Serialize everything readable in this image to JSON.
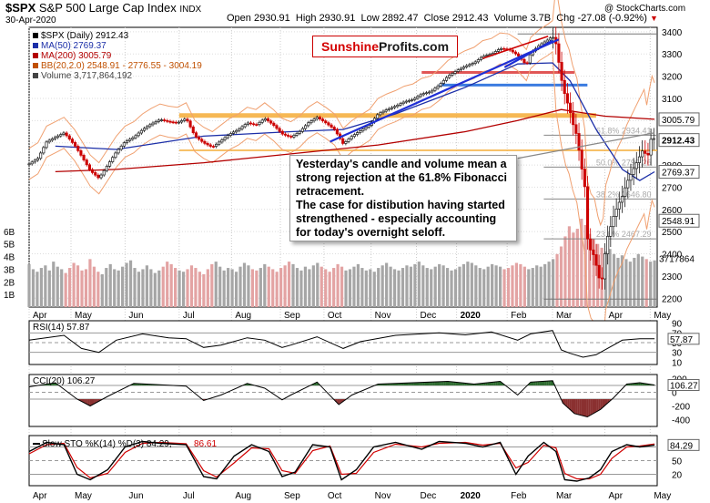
{
  "header": {
    "symbol": "$SPX",
    "name": "S&P 500 Large Cap Index",
    "exchange": "INDX",
    "date": "30-Apr-2020",
    "open_label": "Open",
    "open": "2930.91",
    "high_label": "High",
    "high": "2930.91",
    "low_label": "Low",
    "low": "2892.47",
    "close_label": "Close",
    "close": "2912.43",
    "volume_label": "Volume",
    "volume": "3.7B",
    "chg_label": "Chg",
    "chg": "-27.08 (-0.92%)",
    "chg_arrow": "▼",
    "copyright": "@ StockCharts.com"
  },
  "legend": {
    "price": "$SPX (Daily) 2912.43",
    "ma50": "MA(50) 2769.37",
    "ma200": "MA(200) 3005.79",
    "bb": "BB(20,2.0) 2548.91 - 2776.55 - 3004.19",
    "volume": "Volume 3,717,864,192"
  },
  "logo": {
    "part1": "Sunshine",
    "part2": "Profits.com"
  },
  "callout": "Yesterday's candle and volume mean a strong rejection at the 61.8% Fibonacci retracement.\nThe case for distibution having started strengthened - especially accounting for today's overnight seloff.",
  "colors": {
    "up": "#1a1a1a",
    "down": "#cc0000",
    "ma50": "#1c2fa8",
    "ma200": "#b30000",
    "bb": "#f0a070",
    "support": "#f5b041",
    "trend": "#1f2fd6",
    "sup_blue": "#3a7be0",
    "res_red": "#e05555",
    "vol_up": "#a6a6a6",
    "vol_down": "#e3a3a3"
  },
  "chart_data": {
    "main": {
      "type": "line",
      "title": "$SPX S&P 500 Large Cap Index (Daily)",
      "x_ticks": [
        "Apr",
        "May",
        "Jun",
        "Jul",
        "Aug",
        "Sep",
        "Oct",
        "Nov",
        "Dec",
        "2020",
        "Feb",
        "Mar",
        "Apr",
        "May"
      ],
      "y_ticks": [
        2200,
        2300,
        2400,
        2500,
        2600,
        2700,
        2800,
        2900,
        3000,
        3100,
        3200,
        3300,
        3400
      ],
      "ylim": [
        2160,
        3420
      ],
      "close_series": [
        [
          0,
          2805
        ],
        [
          10,
          2830
        ],
        [
          20,
          2905
        ],
        [
          30,
          2925
        ],
        [
          40,
          2945
        ],
        [
          52,
          2890
        ],
        [
          60,
          2840
        ],
        [
          70,
          2775
        ],
        [
          80,
          2740
        ],
        [
          90,
          2800
        ],
        [
          100,
          2860
        ],
        [
          110,
          2905
        ],
        [
          120,
          2925
        ],
        [
          130,
          2960
        ],
        [
          140,
          2985
        ],
        [
          150,
          3005
        ],
        [
          160,
          2995
        ],
        [
          170,
          2990
        ],
        [
          180,
          3010
        ],
        [
          190,
          2930
        ],
        [
          200,
          2900
        ],
        [
          210,
          2880
        ],
        [
          220,
          2910
        ],
        [
          230,
          2940
        ],
        [
          240,
          2960
        ],
        [
          250,
          2990
        ],
        [
          260,
          2980
        ],
        [
          270,
          3010
        ],
        [
          280,
          2980
        ],
        [
          290,
          2940
        ],
        [
          300,
          2925
        ],
        [
          310,
          2950
        ],
        [
          320,
          2990
        ],
        [
          330,
          3015
        ],
        [
          340,
          2990
        ],
        [
          350,
          2960
        ],
        [
          360,
          2895
        ],
        [
          370,
          2930
        ],
        [
          380,
          2955
        ],
        [
          390,
          2980
        ],
        [
          400,
          3030
        ],
        [
          410,
          3050
        ],
        [
          420,
          3065
        ],
        [
          430,
          3085
        ],
        [
          440,
          3095
        ],
        [
          450,
          3120
        ],
        [
          460,
          3130
        ],
        [
          470,
          3160
        ],
        [
          480,
          3200
        ],
        [
          490,
          3225
        ],
        [
          500,
          3245
        ],
        [
          510,
          3260
        ],
        [
          520,
          3290
        ],
        [
          530,
          3300
        ],
        [
          540,
          3325
        ],
        [
          550,
          3320
        ],
        [
          560,
          3295
        ],
        [
          570,
          3250
        ],
        [
          575,
          3305
        ],
        [
          585,
          3340
        ],
        [
          595,
          3365
        ],
        [
          600,
          3380
        ],
        [
          604,
          3345
        ],
        [
          610,
          3190
        ],
        [
          615,
          3100
        ],
        [
          619,
          3060
        ],
        [
          623,
          2990
        ],
        [
          628,
          2930
        ],
        [
          632,
          2820
        ],
        [
          637,
          2700
        ],
        [
          640,
          2470
        ],
        [
          644,
          2410
        ],
        [
          648,
          2390
        ],
        [
          652,
          2310
        ],
        [
          655,
          2270
        ],
        [
          658,
          2300
        ],
        [
          661,
          2450
        ],
        [
          665,
          2500
        ],
        [
          670,
          2570
        ],
        [
          675,
          2620
        ],
        [
          680,
          2660
        ],
        [
          685,
          2720
        ],
        [
          690,
          2760
        ],
        [
          695,
          2800
        ],
        [
          700,
          2840
        ],
        [
          705,
          2880
        ],
        [
          708,
          2810
        ],
        [
          711,
          2880
        ],
        [
          714,
          2940
        ],
        [
          717,
          2910
        ]
      ],
      "ma50": [
        [
          30,
          2885
        ],
        [
          100,
          2870
        ],
        [
          200,
          2930
        ],
        [
          300,
          2950
        ],
        [
          360,
          2960
        ],
        [
          420,
          3030
        ],
        [
          500,
          3150
        ],
        [
          560,
          3255
        ],
        [
          600,
          3260
        ],
        [
          620,
          3180
        ],
        [
          650,
          2960
        ],
        [
          680,
          2780
        ],
        [
          700,
          2730
        ],
        [
          717,
          2769.37
        ]
      ],
      "ma200": [
        [
          30,
          2770
        ],
        [
          100,
          2780
        ],
        [
          200,
          2810
        ],
        [
          300,
          2850
        ],
        [
          400,
          2890
        ],
        [
          500,
          2950
        ],
        [
          560,
          3000
        ],
        [
          610,
          3050
        ],
        [
          660,
          3020
        ],
        [
          717,
          3005.79
        ]
      ],
      "price_labels": [
        "3005.79",
        "2912.43",
        "2769.37",
        "2548.91"
      ],
      "fib_labels": [
        "61.8% 2934.41",
        "50.0% 2790.26",
        "38.2% 2646.80",
        "23.6% 2467.29"
      ],
      "volume_ticks": [
        "6B",
        "5B",
        "4B",
        "3B",
        "2B",
        "1B"
      ],
      "volume_label": "3717864",
      "volume_bars": [
        3.4,
        3.0,
        2.8,
        3.1,
        3.3,
        2.9,
        3.6,
        3.2,
        3.0,
        2.7,
        3.1,
        3.5,
        3.3,
        2.9,
        3.0,
        3.8,
        3.2,
        2.8,
        2.6,
        3.1,
        3.4,
        3.0,
        2.9,
        3.2,
        3.5,
        3.7,
        3.1,
        2.8,
        3.0,
        3.3,
        3.0,
        2.7,
        2.9,
        3.2,
        3.6,
        3.4,
        3.1,
        2.9,
        2.8,
        3.0,
        3.3,
        3.1,
        2.8,
        2.6,
        3.0,
        3.4,
        3.6,
        3.2,
        2.9,
        3.1,
        3.0,
        2.8,
        3.2,
        3.5,
        3.3,
        3.0,
        2.9,
        3.1,
        3.4,
        3.2,
        3.0,
        2.8,
        3.1,
        3.3,
        3.6,
        3.4,
        3.1,
        2.9,
        3.2,
        3.0,
        3.3,
        3.5,
        3.2,
        3.0,
        2.8,
        3.1,
        3.4,
        3.2,
        2.9,
        3.0,
        3.2,
        3.4,
        3.1,
        2.9,
        3.0,
        2.8,
        3.1,
        3.3,
        3.5,
        3.2,
        3.0,
        2.9,
        3.1,
        3.3,
        3.2,
        3.4,
        3.6,
        3.3,
        3.1,
        3.0,
        3.2,
        3.4,
        3.3,
        3.1,
        2.9,
        3.0,
        3.2,
        3.4,
        3.6,
        3.5,
        3.3,
        3.1,
        3.0,
        3.2,
        3.4,
        3.3,
        3.2,
        3.0,
        3.1,
        3.3,
        3.5,
        3.4,
        3.2,
        3.0,
        3.1,
        3.3,
        3.2,
        3.4,
        3.6,
        3.8,
        4.2,
        4.8,
        5.6,
        6.4,
        5.9,
        6.2,
        7.0,
        6.5,
        5.8,
        5.4,
        5.0,
        4.7,
        4.4,
        4.6,
        4.2,
        3.9,
        4.1,
        3.8,
        3.6,
        3.9,
        4.2,
        4.0,
        3.8,
        3.6,
        3.7
      ]
    },
    "rsi": {
      "type": "line",
      "label": "RSI(14) 57.87",
      "y_ticks": [
        90,
        70,
        50,
        30,
        10
      ],
      "ylim": [
        5,
        95
      ],
      "value_label": "57.87",
      "series": [
        [
          0,
          55
        ],
        [
          40,
          65
        ],
        [
          60,
          38
        ],
        [
          80,
          30
        ],
        [
          100,
          55
        ],
        [
          130,
          68
        ],
        [
          160,
          60
        ],
        [
          180,
          58
        ],
        [
          200,
          40
        ],
        [
          220,
          45
        ],
        [
          250,
          60
        ],
        [
          270,
          55
        ],
        [
          290,
          40
        ],
        [
          300,
          45
        ],
        [
          330,
          62
        ],
        [
          360,
          38
        ],
        [
          380,
          52
        ],
        [
          420,
          65
        ],
        [
          470,
          70
        ],
        [
          500,
          66
        ],
        [
          530,
          72
        ],
        [
          560,
          55
        ],
        [
          575,
          68
        ],
        [
          600,
          75
        ],
        [
          610,
          35
        ],
        [
          620,
          28
        ],
        [
          635,
          20
        ],
        [
          650,
          25
        ],
        [
          665,
          40
        ],
        [
          680,
          55
        ],
        [
          700,
          58
        ],
        [
          717,
          57.87
        ]
      ]
    },
    "cci": {
      "type": "line",
      "label": "CCI(20) 106.27",
      "y_ticks": [
        200,
        100,
        0,
        -200,
        -400
      ],
      "ylim": [
        -500,
        260
      ],
      "value_label": "106.27",
      "series": [
        [
          0,
          80
        ],
        [
          30,
          140
        ],
        [
          55,
          -100
        ],
        [
          70,
          -200
        ],
        [
          90,
          -60
        ],
        [
          120,
          130
        ],
        [
          150,
          110
        ],
        [
          180,
          90
        ],
        [
          200,
          -120
        ],
        [
          220,
          -40
        ],
        [
          250,
          130
        ],
        [
          270,
          60
        ],
        [
          290,
          -110
        ],
        [
          300,
          -40
        ],
        [
          330,
          150
        ],
        [
          355,
          -180
        ],
        [
          370,
          -40
        ],
        [
          400,
          120
        ],
        [
          440,
          140
        ],
        [
          480,
          160
        ],
        [
          510,
          120
        ],
        [
          540,
          160
        ],
        [
          560,
          -40
        ],
        [
          575,
          150
        ],
        [
          600,
          170
        ],
        [
          612,
          -160
        ],
        [
          625,
          -310
        ],
        [
          640,
          -360
        ],
        [
          655,
          -250
        ],
        [
          670,
          -80
        ],
        [
          685,
          120
        ],
        [
          700,
          140
        ],
        [
          717,
          106.27
        ]
      ]
    },
    "sto": {
      "type": "line",
      "label": "Slow STO %K(14) %D(3) 84.29,",
      "label_d": "86.61",
      "y_ticks": [
        80,
        50,
        20
      ],
      "ylim": [
        -5,
        105
      ],
      "value_label": "84.29",
      "k_series": [
        [
          0,
          70
        ],
        [
          20,
          90
        ],
        [
          40,
          85
        ],
        [
          55,
          20
        ],
        [
          70,
          8
        ],
        [
          90,
          30
        ],
        [
          110,
          80
        ],
        [
          130,
          92
        ],
        [
          150,
          88
        ],
        [
          180,
          85
        ],
        [
          200,
          15
        ],
        [
          215,
          10
        ],
        [
          235,
          60
        ],
        [
          255,
          85
        ],
        [
          275,
          70
        ],
        [
          290,
          15
        ],
        [
          305,
          25
        ],
        [
          325,
          85
        ],
        [
          345,
          80
        ],
        [
          358,
          8
        ],
        [
          375,
          30
        ],
        [
          395,
          80
        ],
        [
          420,
          90
        ],
        [
          450,
          75
        ],
        [
          470,
          92
        ],
        [
          500,
          88
        ],
        [
          520,
          80
        ],
        [
          540,
          90
        ],
        [
          558,
          20
        ],
        [
          572,
          60
        ],
        [
          590,
          90
        ],
        [
          604,
          70
        ],
        [
          614,
          8
        ],
        [
          628,
          5
        ],
        [
          642,
          12
        ],
        [
          655,
          30
        ],
        [
          668,
          70
        ],
        [
          685,
          85
        ],
        [
          700,
          80
        ],
        [
          717,
          84.29
        ]
      ],
      "d_series": [
        [
          0,
          65
        ],
        [
          20,
          85
        ],
        [
          40,
          88
        ],
        [
          55,
          35
        ],
        [
          70,
          12
        ],
        [
          90,
          22
        ],
        [
          110,
          68
        ],
        [
          130,
          88
        ],
        [
          150,
          90
        ],
        [
          180,
          87
        ],
        [
          200,
          28
        ],
        [
          215,
          14
        ],
        [
          235,
          45
        ],
        [
          255,
          78
        ],
        [
          275,
          76
        ],
        [
          290,
          28
        ],
        [
          305,
          22
        ],
        [
          325,
          72
        ],
        [
          345,
          82
        ],
        [
          358,
          20
        ],
        [
          375,
          22
        ],
        [
          395,
          68
        ],
        [
          420,
          86
        ],
        [
          450,
          80
        ],
        [
          470,
          88
        ],
        [
          500,
          90
        ],
        [
          520,
          84
        ],
        [
          540,
          88
        ],
        [
          558,
          34
        ],
        [
          572,
          46
        ],
        [
          590,
          84
        ],
        [
          604,
          78
        ],
        [
          614,
          22
        ],
        [
          628,
          10
        ],
        [
          642,
          10
        ],
        [
          655,
          20
        ],
        [
          668,
          55
        ],
        [
          685,
          80
        ],
        [
          700,
          82
        ],
        [
          717,
          86.61
        ]
      ]
    }
  }
}
